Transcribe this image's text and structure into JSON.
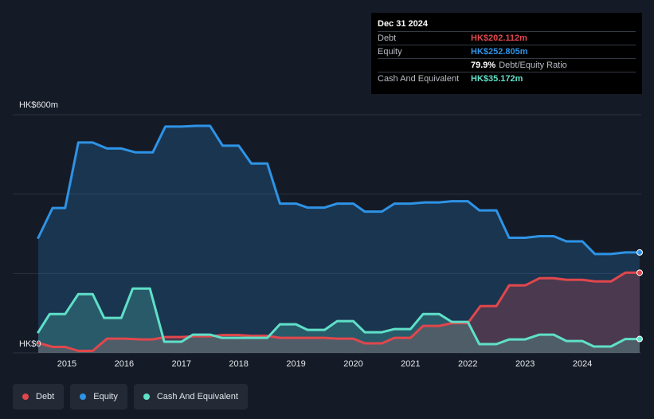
{
  "colors": {
    "debt": "#e0474c",
    "equity": "#2e93e6",
    "cash": "#5fe0c8",
    "grid": "#2b323d"
  },
  "tooltip": {
    "date": "Dec 31 2024",
    "debt_label": "Debt",
    "debt_value": "HK$202.112m",
    "equity_label": "Equity",
    "equity_value": "HK$252.805m",
    "ratio_value": "79.9%",
    "ratio_label": "Debt/Equity Ratio",
    "cash_label": "Cash And Equivalent",
    "cash_value": "HK$35.172m"
  },
  "legend": {
    "debt": "Debt",
    "equity": "Equity",
    "cash": "Cash And Equivalent"
  },
  "chart_data": {
    "type": "area",
    "ytick_labels": [
      "HK$600m",
      "HK$0"
    ],
    "ylim": [
      0,
      600
    ],
    "xlim": [
      2014.5,
      2025.0
    ],
    "x_ticks": [
      2015,
      2016,
      2017,
      2018,
      2019,
      2020,
      2021,
      2022,
      2023,
      2024
    ],
    "grid": true,
    "legend_position": "bottom-left",
    "series": [
      {
        "name": "Equity",
        "key": "equity",
        "points": [
          [
            2014.5,
            290
          ],
          [
            2014.75,
            365
          ],
          [
            2014.97,
            365
          ],
          [
            2015.2,
            530
          ],
          [
            2015.45,
            530
          ],
          [
            2015.7,
            515
          ],
          [
            2015.95,
            515
          ],
          [
            2016.2,
            505
          ],
          [
            2016.5,
            505
          ],
          [
            2016.72,
            570
          ],
          [
            2017.0,
            570
          ],
          [
            2017.25,
            572
          ],
          [
            2017.5,
            572
          ],
          [
            2017.72,
            522
          ],
          [
            2018.0,
            522
          ],
          [
            2018.22,
            477
          ],
          [
            2018.5,
            477
          ],
          [
            2018.72,
            376
          ],
          [
            2019.0,
            376
          ],
          [
            2019.2,
            366
          ],
          [
            2019.5,
            366
          ],
          [
            2019.72,
            376
          ],
          [
            2020.0,
            376
          ],
          [
            2020.2,
            356
          ],
          [
            2020.5,
            356
          ],
          [
            2020.72,
            376
          ],
          [
            2021.0,
            376
          ],
          [
            2021.25,
            379
          ],
          [
            2021.5,
            379
          ],
          [
            2021.72,
            382
          ],
          [
            2022.0,
            382
          ],
          [
            2022.2,
            359
          ],
          [
            2022.5,
            359
          ],
          [
            2022.72,
            290
          ],
          [
            2023.0,
            290
          ],
          [
            2023.25,
            294
          ],
          [
            2023.5,
            294
          ],
          [
            2023.72,
            281
          ],
          [
            2024.0,
            281
          ],
          [
            2024.22,
            249
          ],
          [
            2024.5,
            249
          ],
          [
            2024.75,
            253
          ],
          [
            2025.0,
            253
          ]
        ]
      },
      {
        "name": "Debt",
        "key": "debt",
        "points": [
          [
            2014.5,
            25
          ],
          [
            2014.75,
            15
          ],
          [
            2014.97,
            15
          ],
          [
            2015.2,
            5
          ],
          [
            2015.45,
            5
          ],
          [
            2015.7,
            36
          ],
          [
            2016.0,
            36
          ],
          [
            2016.3,
            34
          ],
          [
            2016.5,
            34
          ],
          [
            2016.72,
            40
          ],
          [
            2017.0,
            40
          ],
          [
            2017.25,
            42
          ],
          [
            2017.5,
            42
          ],
          [
            2017.72,
            45
          ],
          [
            2018.0,
            45
          ],
          [
            2018.22,
            43
          ],
          [
            2018.5,
            43
          ],
          [
            2018.72,
            38
          ],
          [
            2019.0,
            38
          ],
          [
            2019.2,
            38
          ],
          [
            2019.5,
            38
          ],
          [
            2019.72,
            36
          ],
          [
            2020.0,
            36
          ],
          [
            2020.2,
            24
          ],
          [
            2020.5,
            24
          ],
          [
            2020.72,
            38
          ],
          [
            2021.0,
            38
          ],
          [
            2021.22,
            68
          ],
          [
            2021.5,
            68
          ],
          [
            2021.72,
            75
          ],
          [
            2022.0,
            75
          ],
          [
            2022.22,
            118
          ],
          [
            2022.5,
            118
          ],
          [
            2022.72,
            170
          ],
          [
            2023.0,
            170
          ],
          [
            2023.25,
            188
          ],
          [
            2023.5,
            188
          ],
          [
            2023.72,
            184
          ],
          [
            2024.0,
            184
          ],
          [
            2024.22,
            180
          ],
          [
            2024.5,
            180
          ],
          [
            2024.75,
            202
          ],
          [
            2025.0,
            202
          ]
        ]
      },
      {
        "name": "Cash And Equivalent",
        "key": "cash",
        "points": [
          [
            2014.5,
            52
          ],
          [
            2014.7,
            98
          ],
          [
            2014.97,
            98
          ],
          [
            2015.2,
            148
          ],
          [
            2015.45,
            148
          ],
          [
            2015.65,
            88
          ],
          [
            2015.95,
            88
          ],
          [
            2016.15,
            162
          ],
          [
            2016.45,
            162
          ],
          [
            2016.7,
            28
          ],
          [
            2017.0,
            28
          ],
          [
            2017.2,
            46
          ],
          [
            2017.5,
            46
          ],
          [
            2017.7,
            38
          ],
          [
            2018.0,
            38
          ],
          [
            2018.22,
            38
          ],
          [
            2018.5,
            38
          ],
          [
            2018.72,
            72
          ],
          [
            2019.0,
            72
          ],
          [
            2019.2,
            58
          ],
          [
            2019.5,
            58
          ],
          [
            2019.72,
            80
          ],
          [
            2020.0,
            80
          ],
          [
            2020.2,
            52
          ],
          [
            2020.5,
            52
          ],
          [
            2020.72,
            60
          ],
          [
            2021.0,
            60
          ],
          [
            2021.22,
            98
          ],
          [
            2021.5,
            98
          ],
          [
            2021.72,
            78
          ],
          [
            2022.0,
            78
          ],
          [
            2022.2,
            22
          ],
          [
            2022.5,
            22
          ],
          [
            2022.72,
            34
          ],
          [
            2023.0,
            34
          ],
          [
            2023.25,
            46
          ],
          [
            2023.5,
            46
          ],
          [
            2023.72,
            30
          ],
          [
            2024.0,
            30
          ],
          [
            2024.2,
            16
          ],
          [
            2024.5,
            16
          ],
          [
            2024.75,
            35
          ],
          [
            2025.0,
            35
          ]
        ]
      }
    ]
  }
}
